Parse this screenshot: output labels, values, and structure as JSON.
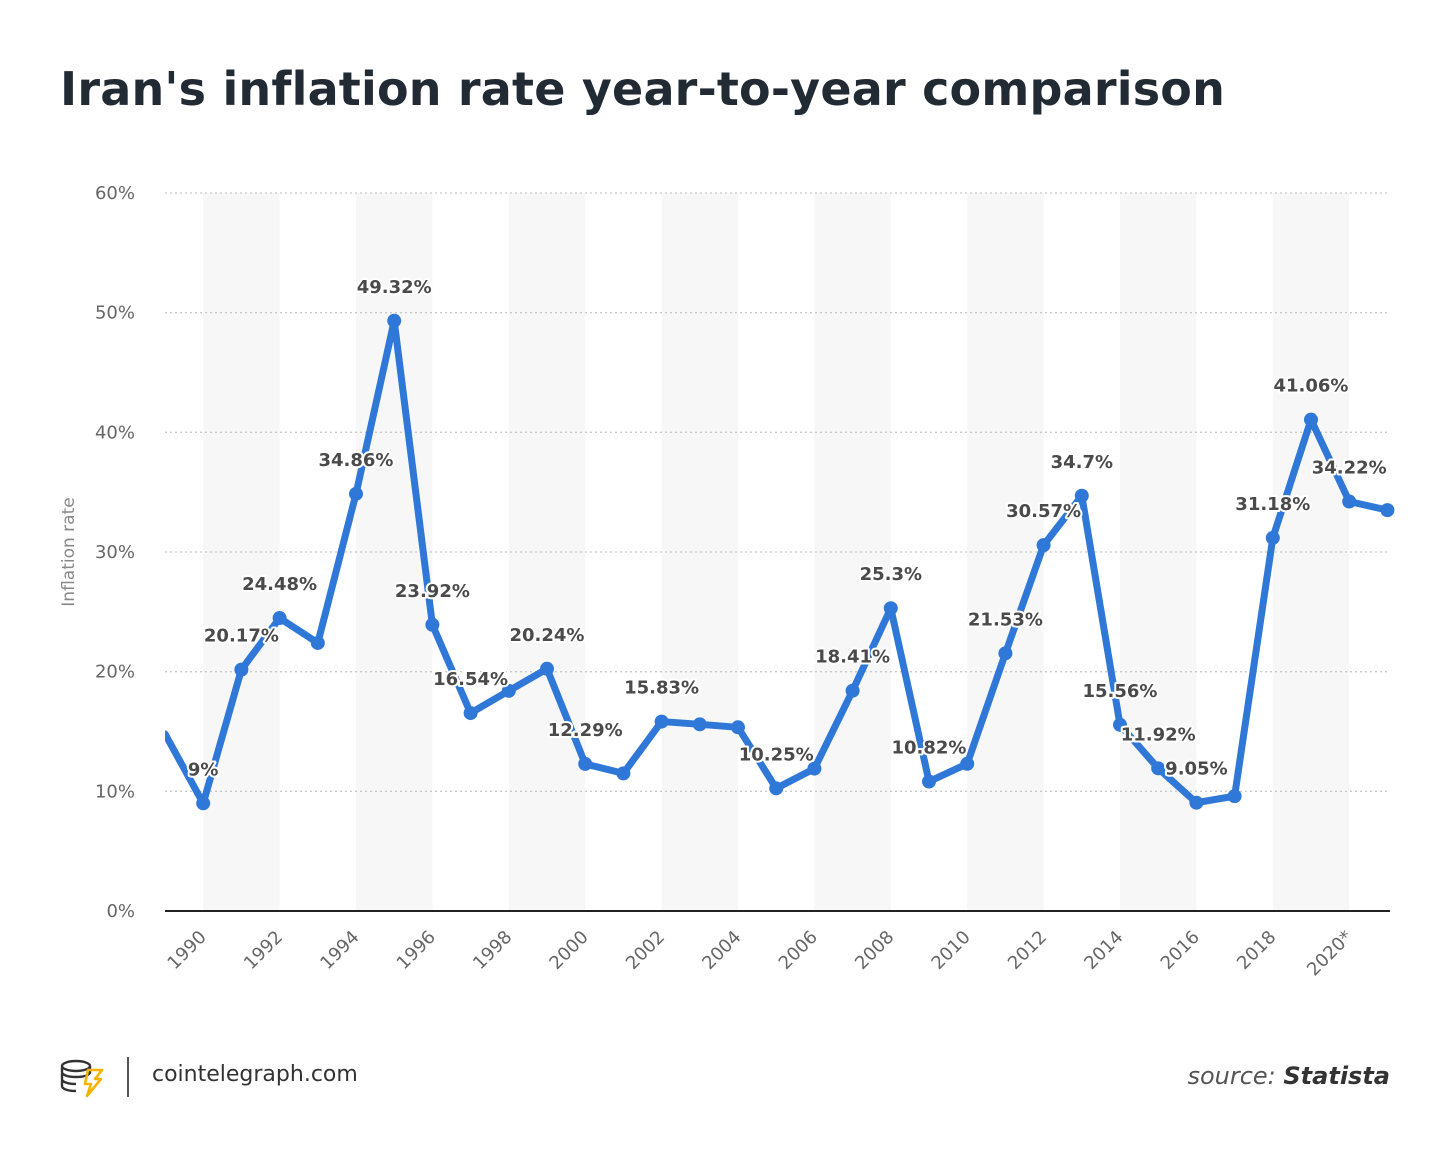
{
  "title": "Iran's inflation rate year-to-year comparison",
  "footer": {
    "site": "cointelegraph.com",
    "source_prefix": "source:",
    "source_name": "Statista"
  },
  "colors": {
    "line": "#2f78d8",
    "band": "#f7f7f7",
    "grid": "#c9c9c9",
    "axis": "#222222",
    "logo_yellow": "#f5b400"
  },
  "chart_data": {
    "type": "line",
    "ylabel": "Inflation rate",
    "y_ticks": [
      "0%",
      "10%",
      "20%",
      "30%",
      "40%",
      "50%",
      "60%"
    ],
    "ylim": [
      0,
      60
    ],
    "x_tick_labels": [
      "1990",
      "1992",
      "1994",
      "1996",
      "1998",
      "2000",
      "2002",
      "2004",
      "2006",
      "2008",
      "2010",
      "2012",
      "2014",
      "2016",
      "2018",
      "2020*"
    ],
    "grid": true,
    "series": [
      {
        "x": [
          1989,
          1990,
          1991,
          1992,
          1993,
          1994,
          1995,
          1996,
          1997,
          1998,
          1999,
          2000,
          2001,
          2002,
          2003,
          2004,
          2005,
          2006,
          2007,
          2008,
          2009,
          2010,
          2011,
          2012,
          2013,
          2014,
          2015,
          2016,
          2017,
          2018,
          2019,
          2020,
          2021
        ],
        "values": [
          14.8,
          9,
          20.17,
          24.48,
          22.4,
          34.86,
          49.32,
          23.92,
          16.54,
          18.4,
          20.24,
          12.29,
          11.5,
          15.83,
          15.6,
          15.35,
          10.25,
          11.9,
          18.41,
          25.3,
          10.82,
          12.3,
          21.53,
          30.57,
          34.7,
          15.56,
          11.92,
          9.05,
          9.6,
          31.18,
          41.06,
          34.22,
          33.5
        ],
        "labels": [
          "",
          "9%",
          "20.17%",
          "24.48%",
          "",
          "34.86%",
          "49.32%",
          "23.92%",
          "16.54%",
          "",
          "20.24%",
          "12.29%",
          "",
          "15.83%",
          "",
          "",
          "10.25%",
          "",
          "18.41%",
          "25.3%",
          "10.82%",
          "",
          "21.53%",
          "30.57%",
          "34.7%",
          "15.56%",
          "11.92%",
          "9.05%",
          "",
          "31.18%",
          "41.06%",
          "34.22%",
          ""
        ]
      }
    ]
  }
}
